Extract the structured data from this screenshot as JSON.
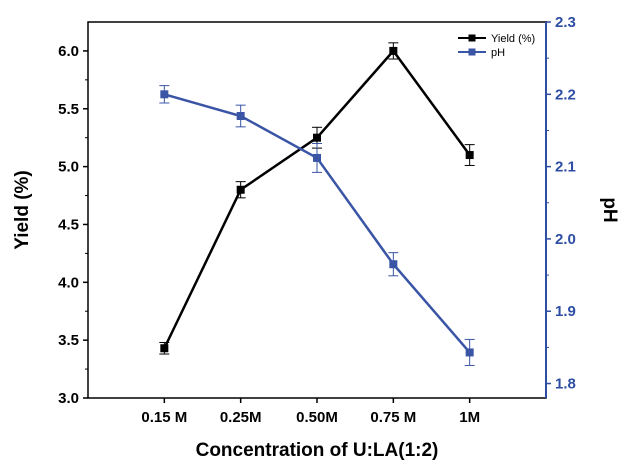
{
  "chart_data": {
    "type": "line",
    "xlabel": "Concentration of U:LA(1:2)",
    "categories": [
      "0.15 M",
      "0.25M",
      "0.50M",
      "0.75 M",
      "1M"
    ],
    "left_axis": {
      "label": "Yield (%)",
      "ylim": [
        3.0,
        6.25
      ],
      "ticks": [
        "3.0",
        "3.5",
        "4.0",
        "4.5",
        "5.0",
        "5.5",
        "6.0"
      ],
      "color": "#000000"
    },
    "right_axis": {
      "label": "pH",
      "ylim": [
        1.78,
        2.3
      ],
      "ticks": [
        "1.8",
        "1.9",
        "2.0",
        "2.1",
        "2.2",
        "2.3"
      ],
      "color": "#2e4ea3"
    },
    "series": [
      {
        "name": "Yield (%)",
        "axis": "left",
        "color": "#000000",
        "values": [
          3.43,
          4.8,
          5.25,
          6.0,
          5.1
        ],
        "errors": [
          0.05,
          0.07,
          0.09,
          0.07,
          0.09
        ]
      },
      {
        "name": "pH",
        "axis": "right",
        "color": "#3a55a6",
        "values": [
          2.2,
          2.17,
          2.112,
          1.965,
          1.843
        ],
        "errors": [
          0.012,
          0.015,
          0.02,
          0.016,
          0.018
        ]
      }
    ],
    "legend": {
      "position": "top-right"
    },
    "grid": false
  }
}
